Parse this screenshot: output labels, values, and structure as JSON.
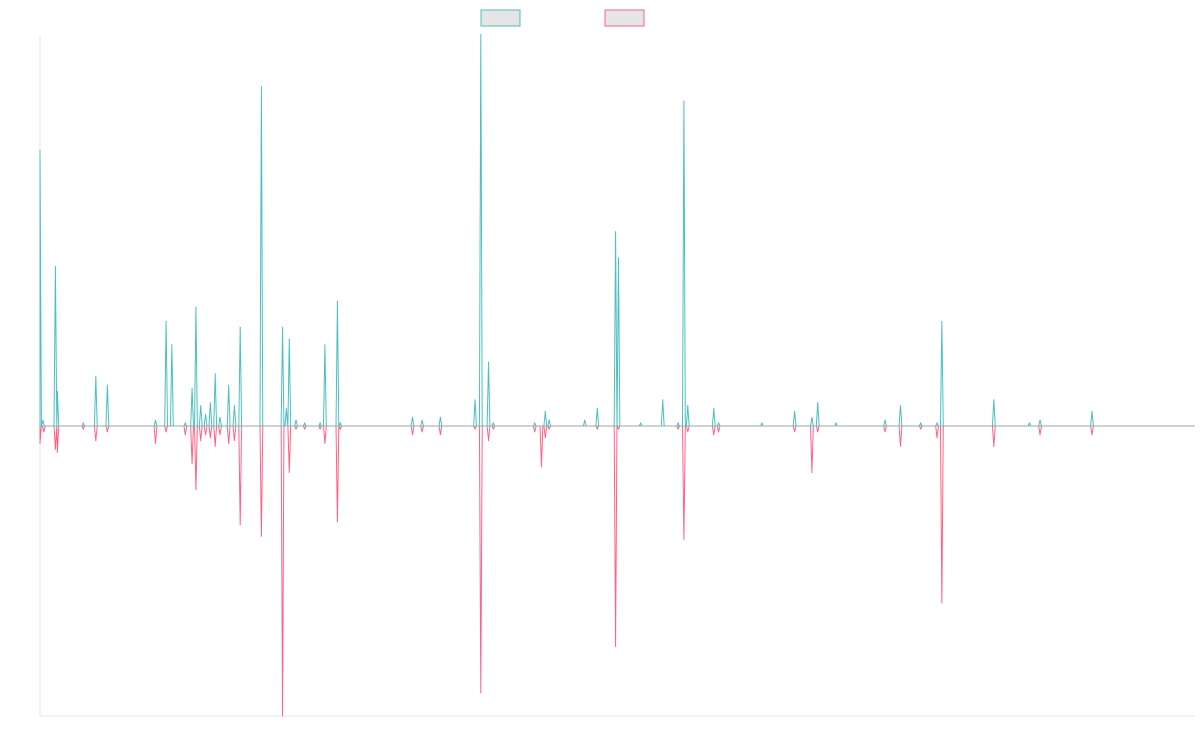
{
  "chart_data": {
    "type": "line",
    "title": "",
    "xlabel": "",
    "ylabel": "",
    "x_range": [
      0,
      1200
    ],
    "ylim": [
      -1,
      1.2
    ],
    "grid": false,
    "legend_position": "top-center",
    "series": [
      {
        "color": "#4bc0c0",
        "fill": "#e5e5e5",
        "direction": 1,
        "peaks": [
          [
            0,
            0.95
          ],
          [
            3,
            0.02
          ],
          [
            16,
            0.55
          ],
          [
            18,
            0.12
          ],
          [
            45,
            0.01
          ],
          [
            58,
            0.17
          ],
          [
            70,
            0.14
          ],
          [
            120,
            0.02
          ],
          [
            131,
            0.36
          ],
          [
            137,
            0.28
          ],
          [
            151,
            0.01
          ],
          [
            158,
            0.13
          ],
          [
            162,
            0.41
          ],
          [
            167,
            0.07
          ],
          [
            172,
            0.04
          ],
          [
            177,
            0.08
          ],
          [
            182,
            0.18
          ],
          [
            187,
            0.03
          ],
          [
            196,
            0.14
          ],
          [
            202,
            0.07
          ],
          [
            208,
            0.34
          ],
          [
            230,
            1.17
          ],
          [
            252,
            0.34
          ],
          [
            256,
            0.06
          ],
          [
            259,
            0.3
          ],
          [
            266,
            0.02
          ],
          [
            275,
            0.01
          ],
          [
            291,
            0.01
          ],
          [
            296,
            0.28
          ],
          [
            309,
            0.43
          ],
          [
            312,
            0.01
          ],
          [
            387,
            0.03
          ],
          [
            397,
            0.02
          ],
          [
            416,
            0.03
          ],
          [
            452,
            0.09
          ],
          [
            458,
            1.35
          ],
          [
            466,
            0.22
          ],
          [
            471,
            0.01
          ],
          [
            514,
            0.01
          ],
          [
            525,
            0.05
          ],
          [
            529,
            0.02
          ],
          [
            566,
            0.02
          ],
          [
            579,
            0.06
          ],
          [
            598,
            0.67
          ],
          [
            601,
            0.58
          ],
          [
            624,
            0.01
          ],
          [
            647,
            0.09
          ],
          [
            663,
            0.01
          ],
          [
            669,
            1.12
          ],
          [
            673,
            0.07
          ],
          [
            700,
            0.06
          ],
          [
            705,
            0.01
          ],
          [
            750,
            0.01
          ],
          [
            784,
            0.05
          ],
          [
            802,
            0.03
          ],
          [
            808,
            0.08
          ],
          [
            827,
            0.01
          ],
          [
            878,
            0.02
          ],
          [
            894,
            0.07
          ],
          [
            915,
            0.01
          ],
          [
            932,
            0.01
          ],
          [
            937,
            0.36
          ],
          [
            991,
            0.09
          ],
          [
            1028,
            0.01
          ],
          [
            1039,
            0.02
          ],
          [
            1093,
            0.05
          ]
        ]
      },
      {
        "color": "#ff6384",
        "fill": "#e5e5e5",
        "direction": -1,
        "peaks": [
          [
            0,
            0.06
          ],
          [
            4,
            0.02
          ],
          [
            16,
            0.08
          ],
          [
            18,
            0.09
          ],
          [
            45,
            0.01
          ],
          [
            58,
            0.05
          ],
          [
            70,
            0.02
          ],
          [
            120,
            0.06
          ],
          [
            131,
            0.02
          ],
          [
            151,
            0.03
          ],
          [
            158,
            0.13
          ],
          [
            162,
            0.22
          ],
          [
            167,
            0.05
          ],
          [
            172,
            0.03
          ],
          [
            177,
            0.04
          ],
          [
            182,
            0.07
          ],
          [
            187,
            0.03
          ],
          [
            196,
            0.06
          ],
          [
            202,
            0.05
          ],
          [
            208,
            0.34
          ],
          [
            230,
            0.38
          ],
          [
            252,
            1.0
          ],
          [
            259,
            0.16
          ],
          [
            266,
            0.01
          ],
          [
            275,
            0.01
          ],
          [
            291,
            0.01
          ],
          [
            296,
            0.06
          ],
          [
            309,
            0.33
          ],
          [
            312,
            0.01
          ],
          [
            387,
            0.03
          ],
          [
            397,
            0.02
          ],
          [
            416,
            0.03
          ],
          [
            452,
            0.01
          ],
          [
            458,
            0.92
          ],
          [
            466,
            0.05
          ],
          [
            471,
            0.01
          ],
          [
            514,
            0.02
          ],
          [
            521,
            0.14
          ],
          [
            525,
            0.04
          ],
          [
            529,
            0.01
          ],
          [
            579,
            0.01
          ],
          [
            598,
            0.76
          ],
          [
            601,
            0.01
          ],
          [
            663,
            0.01
          ],
          [
            669,
            0.39
          ],
          [
            673,
            0.02
          ],
          [
            700,
            0.03
          ],
          [
            705,
            0.02
          ],
          [
            784,
            0.02
          ],
          [
            802,
            0.16
          ],
          [
            808,
            0.02
          ],
          [
            878,
            0.02
          ],
          [
            894,
            0.07
          ],
          [
            915,
            0.01
          ],
          [
            932,
            0.04
          ],
          [
            937,
            0.61
          ],
          [
            991,
            0.07
          ],
          [
            1039,
            0.03
          ],
          [
            1093,
            0.03
          ]
        ]
      }
    ]
  },
  "colors": {
    "axis": "#e6e6e6",
    "baseline": "#9aa6ad"
  }
}
